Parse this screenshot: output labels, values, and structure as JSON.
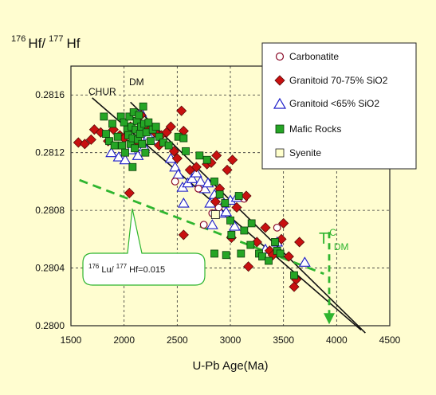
{
  "chart_data": {
    "type": "scatter",
    "xlabel": "U-Pb Age(Ma)",
    "ylabel_parts": {
      "sup1": "176",
      "base1": "Hf/",
      "sup2": "177",
      "base2": "Hf"
    },
    "xlim": [
      1500,
      4500
    ],
    "ylim": [
      0.28,
      0.2818
    ],
    "x_ticks": [
      1500,
      2000,
      2500,
      3000,
      3500,
      4000,
      4500
    ],
    "y_ticks": [
      0.28,
      0.2804,
      0.2808,
      0.2812,
      0.2816
    ],
    "y_tick_labels": [
      "0.2800",
      "0.2804",
      "0.2808",
      "0.2812",
      "0.2816"
    ],
    "grid": true,
    "legend_position": "top-right",
    "colors": {
      "background": "#fffdd0",
      "carbonatite": "#8b0c2a",
      "granitoid_high": "#c81010",
      "granitoid_low": "#1c1cc8",
      "mafic": "#25a525",
      "syenite": "#ffffcc",
      "evolution_line": "#2fb52f"
    },
    "series": [
      {
        "name": "Carbonatite",
        "marker": "open-circle",
        "points": [
          [
            2200,
            0.28135
          ],
          [
            2480,
            0.281
          ],
          [
            2700,
            0.28095
          ],
          [
            2750,
            0.2807
          ],
          [
            2830,
            0.28078
          ],
          [
            2890,
            0.28082
          ],
          [
            3130,
            0.28088
          ],
          [
            3440,
            0.28068
          ]
        ]
      },
      {
        "name": "Granitoid 70-75% SiO2",
        "marker": "filled-diamond",
        "points": [
          [
            1570,
            0.28127
          ],
          [
            1630,
            0.28126
          ],
          [
            1690,
            0.28129
          ],
          [
            1720,
            0.28136
          ],
          [
            1780,
            0.28134
          ],
          [
            1850,
            0.28128
          ],
          [
            1900,
            0.28136
          ],
          [
            1960,
            0.28132
          ],
          [
            2000,
            0.2813
          ],
          [
            2060,
            0.28138
          ],
          [
            2120,
            0.28128
          ],
          [
            2160,
            0.28146
          ],
          [
            2220,
            0.28136
          ],
          [
            2290,
            0.28134
          ],
          [
            2330,
            0.28125
          ],
          [
            2350,
            0.28132
          ],
          [
            2400,
            0.28134
          ],
          [
            2440,
            0.28138
          ],
          [
            2470,
            0.28121
          ],
          [
            2500,
            0.28116
          ],
          [
            2540,
            0.28149
          ],
          [
            2560,
            0.28135
          ],
          [
            2560,
            0.28063
          ],
          [
            2620,
            0.28108
          ],
          [
            2680,
            0.2811
          ],
          [
            2780,
            0.28112
          ],
          [
            2820,
            0.28113
          ],
          [
            2870,
            0.28118
          ],
          [
            2900,
            0.28095
          ],
          [
            2970,
            0.28108
          ],
          [
            3020,
            0.28115
          ],
          [
            3060,
            0.28082
          ],
          [
            3150,
            0.2809
          ],
          [
            3170,
            0.28041
          ],
          [
            3250,
            0.28058
          ],
          [
            3330,
            0.28068
          ],
          [
            3370,
            0.28052
          ],
          [
            3400,
            0.28049
          ],
          [
            3480,
            0.2806
          ],
          [
            3500,
            0.28071
          ],
          [
            3550,
            0.28048
          ],
          [
            3600,
            0.28027
          ],
          [
            3620,
            0.28032
          ],
          [
            3650,
            0.28058
          ],
          [
            2050,
            0.28092
          ],
          [
            2860,
            0.28086
          ],
          [
            3010,
            0.28061
          ]
        ]
      },
      {
        "name": "Granitoid <65% SiO2",
        "marker": "open-triangle",
        "points": [
          [
            1880,
            0.2812
          ],
          [
            1950,
            0.28117
          ],
          [
            2010,
            0.28115
          ],
          [
            2060,
            0.28122
          ],
          [
            2130,
            0.28118
          ],
          [
            2190,
            0.28124
          ],
          [
            2230,
            0.28132
          ],
          [
            2290,
            0.28129
          ],
          [
            2440,
            0.28116
          ],
          [
            2480,
            0.2811
          ],
          [
            2510,
            0.28105
          ],
          [
            2550,
            0.28096
          ],
          [
            2600,
            0.28099
          ],
          [
            2640,
            0.28102
          ],
          [
            2680,
            0.28106
          ],
          [
            2720,
            0.281
          ],
          [
            2760,
            0.28095
          ],
          [
            2790,
            0.28099
          ],
          [
            2810,
            0.28085
          ],
          [
            2850,
            0.28091
          ],
          [
            2880,
            0.2808
          ],
          [
            2910,
            0.28078
          ],
          [
            2940,
            0.28085
          ],
          [
            2960,
            0.28079
          ],
          [
            3000,
            0.28087
          ],
          [
            3040,
            0.28069
          ],
          [
            3060,
            0.28089
          ],
          [
            3330,
            0.28053
          ],
          [
            3440,
            0.28058
          ],
          [
            3700,
            0.28044
          ],
          [
            2160,
            0.28148
          ],
          [
            2560,
            0.28085
          ],
          [
            2830,
            0.2807
          ]
        ]
      },
      {
        "name": "Mafic Rocks",
        "marker": "filled-square",
        "points": [
          [
            1810,
            0.28145
          ],
          [
            1830,
            0.28133
          ],
          [
            1860,
            0.28128
          ],
          [
            1890,
            0.2814
          ],
          [
            1910,
            0.28125
          ],
          [
            1940,
            0.28131
          ],
          [
            1970,
            0.28145
          ],
          [
            1980,
            0.28125
          ],
          [
            2000,
            0.28141
          ],
          [
            2010,
            0.2812
          ],
          [
            2030,
            0.28136
          ],
          [
            2040,
            0.28132
          ],
          [
            2050,
            0.28145
          ],
          [
            2060,
            0.28126
          ],
          [
            2070,
            0.28138
          ],
          [
            2080,
            0.2813
          ],
          [
            2090,
            0.28148
          ],
          [
            2100,
            0.28123
          ],
          [
            2110,
            0.28136
          ],
          [
            2120,
            0.28142
          ],
          [
            2130,
            0.28129
          ],
          [
            2140,
            0.28146
          ],
          [
            2150,
            0.28133
          ],
          [
            2160,
            0.28138
          ],
          [
            2170,
            0.28126
          ],
          [
            2180,
            0.28152
          ],
          [
            2190,
            0.2814
          ],
          [
            2200,
            0.2812
          ],
          [
            2210,
            0.28134
          ],
          [
            2230,
            0.28141
          ],
          [
            2250,
            0.28128
          ],
          [
            2270,
            0.28136
          ],
          [
            2300,
            0.28138
          ],
          [
            2330,
            0.28131
          ],
          [
            2370,
            0.28127
          ],
          [
            2420,
            0.28125
          ],
          [
            2510,
            0.28131
          ],
          [
            2560,
            0.2813
          ],
          [
            2580,
            0.28121
          ],
          [
            2710,
            0.28118
          ],
          [
            2780,
            0.28115
          ],
          [
            2850,
            0.281
          ],
          [
            2900,
            0.28091
          ],
          [
            2950,
            0.28085
          ],
          [
            3000,
            0.28073
          ],
          [
            3010,
            0.28063
          ],
          [
            3080,
            0.2809
          ],
          [
            3130,
            0.28066
          ],
          [
            3190,
            0.28056
          ],
          [
            3200,
            0.28071
          ],
          [
            3270,
            0.2805
          ],
          [
            3300,
            0.28048
          ],
          [
            3360,
            0.28045
          ],
          [
            3420,
            0.28058
          ],
          [
            3440,
            0.28052
          ],
          [
            3470,
            0.2805
          ],
          [
            3600,
            0.28035
          ],
          [
            2080,
            0.2811
          ],
          [
            2850,
            0.2805
          ],
          [
            3100,
            0.2805
          ],
          [
            2960,
            0.28049
          ]
        ]
      },
      {
        "name": "Syenite",
        "marker": "open-square-yellow",
        "points": [
          [
            2860,
            0.28077
          ]
        ]
      }
    ],
    "reference_lines": [
      {
        "name": "CHUR",
        "points": [
          [
            1700,
            0.28158
          ],
          [
            4230,
            0.27997
          ]
        ]
      },
      {
        "name": "DM",
        "points": [
          [
            2060,
            0.28155
          ],
          [
            4270,
            0.27995
          ]
        ]
      }
    ],
    "evolution_line": {
      "label": "176 Lu/ 177 Hf=0.015",
      "points": [
        [
          1580,
          0.28101
        ],
        [
          3880,
          0.28036
        ]
      ]
    },
    "tdm_arrow": {
      "x": 3930,
      "y_from": 0.28065,
      "y_to": 0.28001,
      "label": "T",
      "sup": "C",
      "sub": "DM"
    },
    "annotations": {
      "chur": "CHUR",
      "dm": "DM"
    },
    "callout": {
      "sup1": "176",
      "base1": " Lu/ ",
      "sup2": "177",
      "base2": " Hf=0.015"
    }
  }
}
